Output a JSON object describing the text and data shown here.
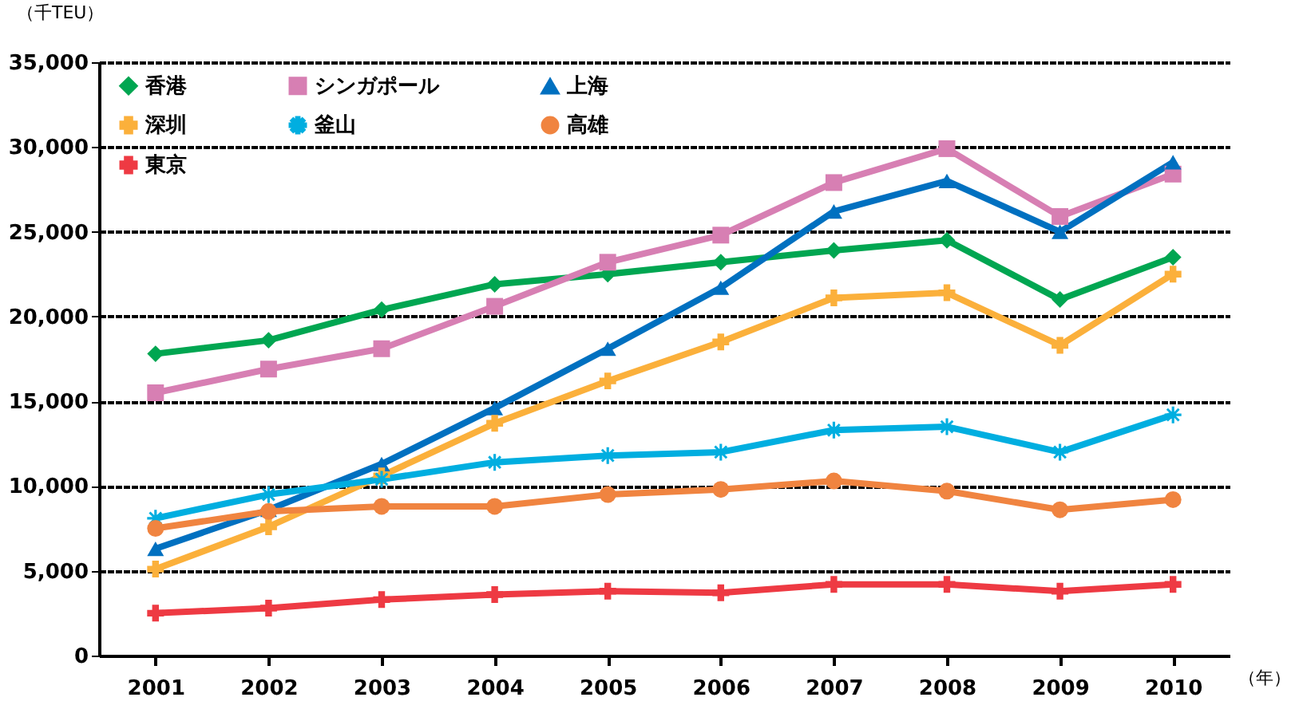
{
  "chart_data": {
    "type": "line",
    "ylabel": "（千TEU）",
    "xlabel": "（年）",
    "categories": [
      "2001",
      "2002",
      "2003",
      "2004",
      "2005",
      "2006",
      "2007",
      "2008",
      "2009",
      "2010"
    ],
    "series": [
      {
        "name": "香港",
        "color": "#00a651",
        "marker": "diamond",
        "values": [
          17800,
          18600,
          20400,
          21900,
          22500,
          23200,
          23900,
          24500,
          21000,
          23500
        ]
      },
      {
        "name": "シンガポール",
        "color": "#d77fb3",
        "marker": "square",
        "values": [
          15500,
          16900,
          18100,
          20600,
          23200,
          24800,
          27900,
          29900,
          25900,
          28400
        ]
      },
      {
        "name": "上海",
        "color": "#0070c0",
        "marker": "triangle",
        "values": [
          6300,
          8600,
          11300,
          14600,
          18100,
          21700,
          26200,
          28000,
          25000,
          29100
        ]
      },
      {
        "name": "深圳",
        "color": "#fbb03b",
        "marker": "cross",
        "values": [
          5100,
          7600,
          10600,
          13700,
          16200,
          18500,
          21100,
          21400,
          18300,
          22500
        ]
      },
      {
        "name": "釜山",
        "color": "#00aee0",
        "marker": "star",
        "values": [
          8100,
          9500,
          10400,
          11400,
          11800,
          12000,
          13300,
          13500,
          12000,
          14200
        ]
      },
      {
        "name": "高雄",
        "color": "#f08440",
        "marker": "circle",
        "values": [
          7500,
          8500,
          8800,
          8800,
          9500,
          9800,
          10300,
          9700,
          8600,
          9200
        ]
      },
      {
        "name": "東京",
        "color": "#ee3a43",
        "marker": "cross",
        "values": [
          2500,
          2800,
          3300,
          3600,
          3800,
          3700,
          4200,
          4200,
          3800,
          4200
        ]
      }
    ],
    "ylim": [
      0,
      35000
    ],
    "yticks": [
      0,
      {
        "value": 5000,
        "label": "5,000"
      },
      {
        "value": 10000,
        "label": "10,000"
      },
      {
        "value": 15000,
        "label": "15,000"
      },
      {
        "value": 20000,
        "label": "20,000"
      },
      {
        "value": 25000,
        "label": "25,000"
      },
      {
        "value": 30000,
        "label": "30,000"
      },
      {
        "value": 35000,
        "label": "35,000"
      }
    ],
    "grid": "y",
    "legend": "top left"
  }
}
